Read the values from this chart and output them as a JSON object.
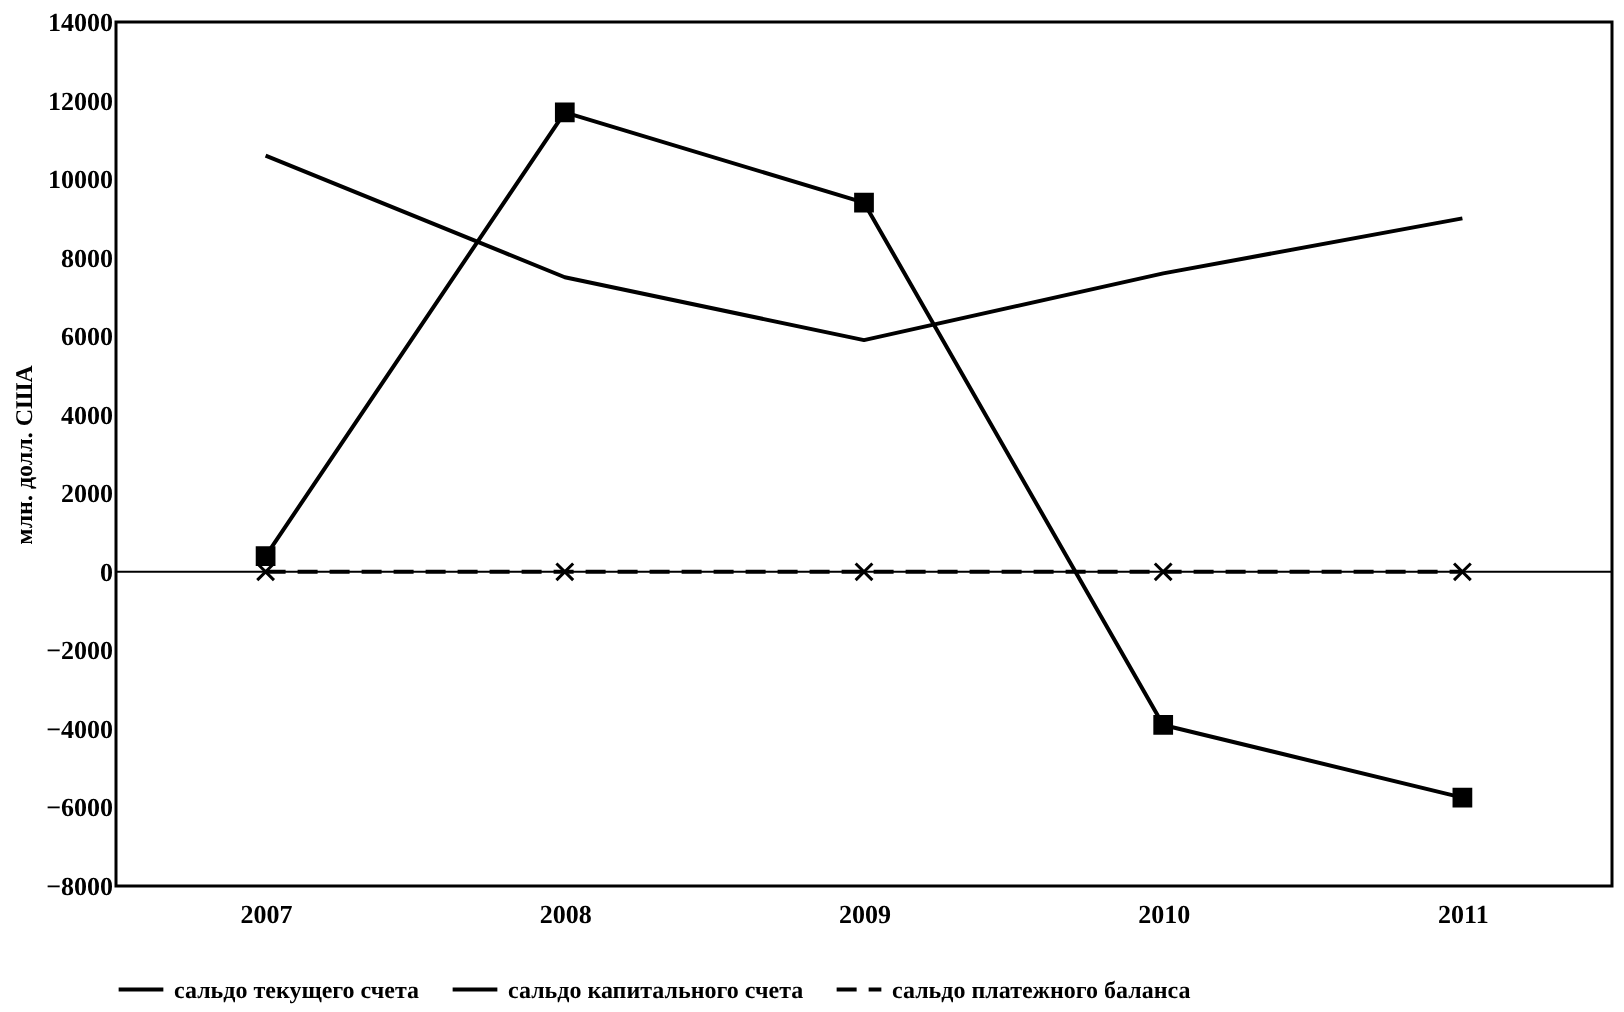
{
  "chart_data": {
    "type": "line",
    "ylabel": "млн. долл. США",
    "categories": [
      "2007",
      "2008",
      "2009",
      "2010",
      "2011"
    ],
    "series": [
      {
        "name": "сальдо текущего счета",
        "color": "#000000",
        "values": [
          10600,
          7500,
          5900,
          7600,
          9000
        ],
        "marker": "none",
        "line_style": "solid"
      },
      {
        "name": "сальдо капитального счета",
        "color": "#000000",
        "values": [
          400,
          11700,
          9400,
          -3900,
          -5750
        ],
        "marker": "square",
        "line_style": "solid"
      },
      {
        "name": "сальдо платежного баланса",
        "color": "#000000",
        "values": [
          0,
          0,
          0,
          0,
          0
        ],
        "marker": "cross",
        "line_style": "dashed"
      }
    ],
    "ylim": [
      -8000,
      14000
    ],
    "yticks": [
      -8000,
      -6000,
      -4000,
      -2000,
      0,
      2000,
      4000,
      6000,
      8000,
      10000,
      12000,
      14000
    ],
    "ref_lines": [
      {
        "axis": "y",
        "value": 0,
        "color": "#000000",
        "line_style": "solid"
      }
    ],
    "grid": false,
    "legend": "bottom"
  }
}
